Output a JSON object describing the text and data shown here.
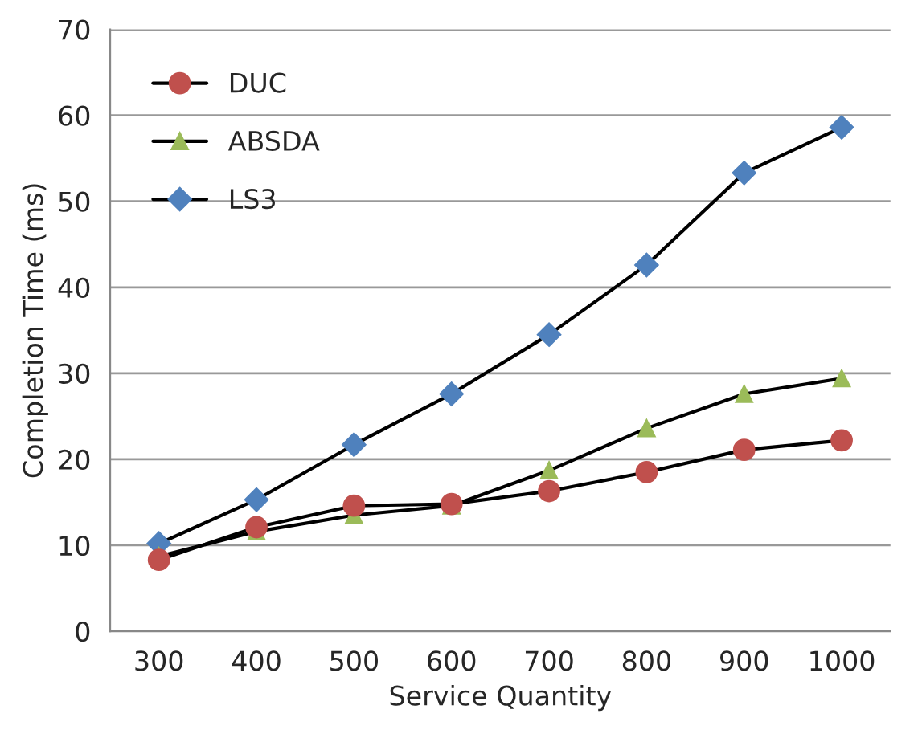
{
  "chart_data": {
    "type": "line",
    "xlabel": "Service Quantity",
    "ylabel": "Completion Time (ms)",
    "categories": [
      "300",
      "400",
      "500",
      "600",
      "700",
      "800",
      "900",
      "1000"
    ],
    "series": [
      {
        "name": "DUC",
        "color": "#c0504d",
        "marker": "circle",
        "values": [
          8.3,
          12.1,
          14.6,
          14.8,
          16.3,
          18.5,
          21.1,
          22.2
        ]
      },
      {
        "name": "ABSDA",
        "color": "#9bbb59",
        "marker": "triangle",
        "values": [
          8.7,
          11.6,
          13.5,
          14.6,
          18.7,
          23.6,
          27.6,
          29.4
        ]
      },
      {
        "name": "LS3",
        "color": "#4f81bd",
        "marker": "diamond",
        "values": [
          10.2,
          15.3,
          21.7,
          27.6,
          34.5,
          42.6,
          53.3,
          58.6
        ]
      }
    ],
    "ylim": [
      0,
      70
    ],
    "yticks": [
      0,
      10,
      20,
      30,
      40,
      50,
      60,
      70
    ],
    "grid": "y",
    "legend": "top left"
  }
}
